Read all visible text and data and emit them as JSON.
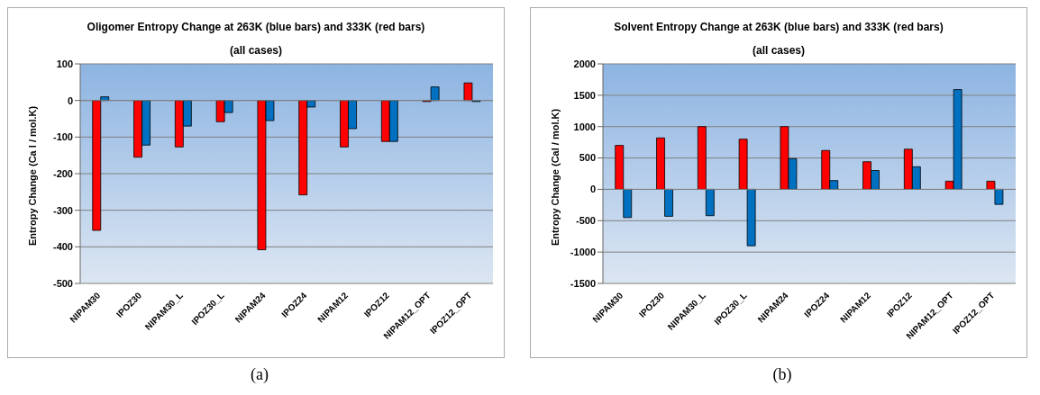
{
  "chart_data": [
    {
      "type": "bar",
      "title": "Oligomer Entropy  Change at 263K (blue bars) and 333K (red bars)",
      "subtitle": "(all cases)",
      "ylabel": "Entropy   Change (Ca  l / mol.K)",
      "annotations": [
        "(a)"
      ],
      "categories": [
        "NIPAM30",
        "IPOZ30",
        "NIPAM30_L",
        "IPOZ30_L",
        "NIPAM24",
        "IPOZ24",
        "NIPAM12",
        "IPOZ12",
        "NIPAM12_OPT",
        "IPOZ12_OPT"
      ],
      "series": [
        {
          "color": "#ff0000",
          "values": [
            -355,
            -155,
            -127,
            -58,
            -408,
            -258,
            -127,
            -112,
            -3,
            48
          ]
        },
        {
          "color": "#0070c0",
          "values": [
            10,
            -122,
            -70,
            -33,
            -55,
            -18,
            -77,
            -112,
            37,
            -3
          ]
        }
      ],
      "ylim": [
        -500,
        100
      ],
      "yticks": [
        -500,
        -400,
        -300,
        -200,
        -100,
        0,
        100
      ],
      "grid": "y"
    },
    {
      "type": "bar",
      "title": "Solvent  Entropy  Change at 263K (blue bars) and 333K (red bars)",
      "subtitle": "(all cases)",
      "ylabel": "Entropy  Change (Cal / mol.K)",
      "annotations": [
        "(b)"
      ],
      "categories": [
        "NIPAM30",
        "IPOZ30",
        "NIPAM30_L",
        "IPOZ30_L",
        "NIPAM24",
        "IPOZ24",
        "NIPAM12",
        "IPOZ12",
        "NIPAM12_OPT",
        "IPOZ12_OPT"
      ],
      "series": [
        {
          "color": "#ff0000",
          "values": [
            700,
            820,
            1000,
            800,
            1000,
            620,
            440,
            640,
            130,
            130
          ]
        },
        {
          "color": "#0070c0",
          "values": [
            -450,
            -430,
            -420,
            -900,
            490,
            140,
            300,
            360,
            1590,
            -240
          ]
        }
      ],
      "ylim": [
        -1500,
        2000
      ],
      "yticks": [
        -1500,
        -1000,
        -500,
        0,
        500,
        1000,
        1500,
        2000
      ],
      "grid": "y"
    }
  ]
}
